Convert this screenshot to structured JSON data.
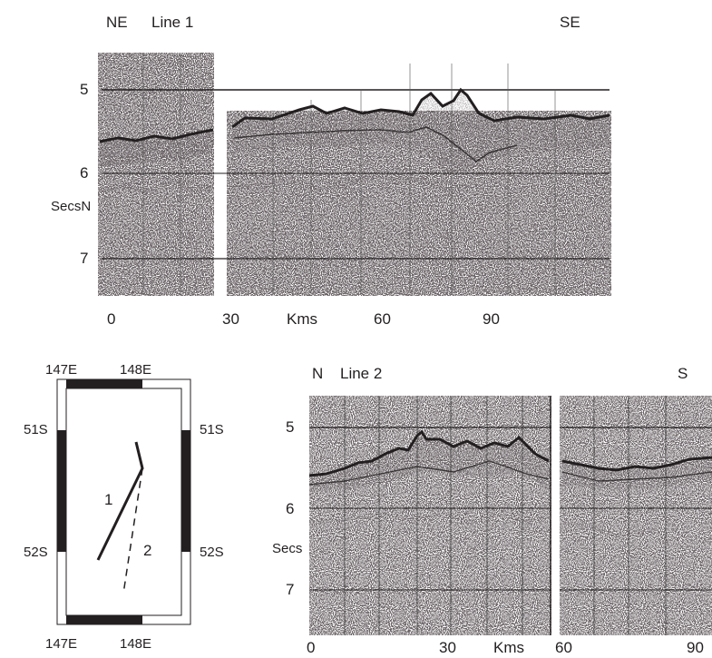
{
  "line1": {
    "label_left": "NE",
    "title": "Line 1",
    "label_right": "SE",
    "y_ticks": [
      "5",
      "6",
      "7"
    ],
    "y_label": "SecsN",
    "x_ticks": [
      "0",
      "30",
      "60",
      "90"
    ],
    "x_unit": "Kms"
  },
  "line2": {
    "label_left": "N",
    "title": "Line 2",
    "label_right": "S",
    "y_ticks": [
      "5",
      "6",
      "7"
    ],
    "y_label": "Secs",
    "x_ticks": [
      "0",
      "30",
      "60",
      "90"
    ],
    "x_unit": "Kms"
  },
  "map": {
    "top_labels": [
      "147E",
      "148E"
    ],
    "bottom_labels": [
      "147E",
      "148E"
    ],
    "left_labels": [
      "51S",
      "52S"
    ],
    "right_labels": [
      "51S",
      "52S"
    ],
    "track_1_label": "1",
    "track_2_label": "2"
  },
  "colors": {
    "ink": "#231f20",
    "paper": "#ffffff",
    "grid": "#5a5a5a"
  }
}
